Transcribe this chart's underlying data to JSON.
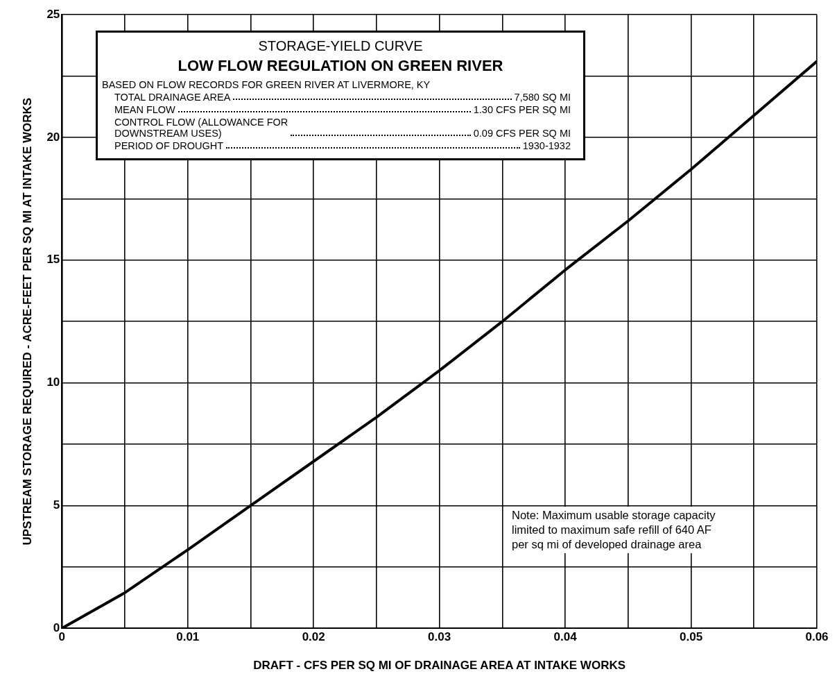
{
  "chart_data": {
    "type": "line",
    "title": "STORAGE-YIELD CURVE",
    "subtitle": "LOW FLOW REGULATION ON GREEN RIVER",
    "xlabel": "DRAFT - CFS PER SQ MI OF DRAINAGE AREA AT INTAKE WORKS",
    "ylabel": "UPSTREAM STORAGE REQUIRED - ACRE-FEET PER SQ MI AT INTAKE WORKS",
    "annotations": [
      "BASED ON FLOW RECORDS FOR GREEN RIVER AT LIVERMORE, KY",
      "TOTAL DRAINAGE AREA",
      "7,580 SQ MI",
      "MEAN FLOW",
      "1.30 CFS PER SQ MI",
      "CONTROL FLOW (ALLOWANCE FOR\nDOWNSTREAM USES)",
      "0.09 CFS PER SQ MI",
      "PERIOD OF DROUGHT",
      "1930-1932",
      "Note: Maximum usable storage capacity limited to maximum safe refill of 640 AF per sq mi of developed drainage area"
    ],
    "x": [
      0,
      0.005,
      0.01,
      0.015,
      0.02,
      0.025,
      0.03,
      0.035,
      0.04,
      0.045,
      0.05,
      0.055,
      0.06
    ],
    "series": [
      {
        "color": "#000000",
        "values": [
          0,
          1.45,
          3.2,
          5.0,
          6.8,
          8.6,
          10.5,
          12.5,
          14.6,
          16.6,
          18.7,
          20.9,
          23.1
        ]
      }
    ],
    "xlim": [
      0,
      0.06
    ],
    "xticks": [
      0,
      {
        "value": 0.005,
        "label": null
      },
      0.01,
      {
        "value": 0.015,
        "label": null
      },
      0.02,
      {
        "value": 0.025,
        "label": null
      },
      0.03,
      {
        "value": 0.035,
        "label": null
      },
      0.04,
      {
        "value": 0.045,
        "label": null
      },
      0.05,
      {
        "value": 0.055,
        "label": null
      },
      0.06
    ],
    "ylim": [
      0,
      25
    ],
    "yticks": [
      0,
      {
        "value": 2.5,
        "label": null
      },
      5,
      {
        "value": 7.5,
        "label": null
      },
      10,
      {
        "value": 12.5,
        "label": null
      },
      15,
      {
        "value": 17.5,
        "label": null
      },
      20,
      {
        "value": 22.5,
        "label": null
      },
      25
    ],
    "grid": true,
    "marker": "none",
    "line_style": "solid"
  }
}
